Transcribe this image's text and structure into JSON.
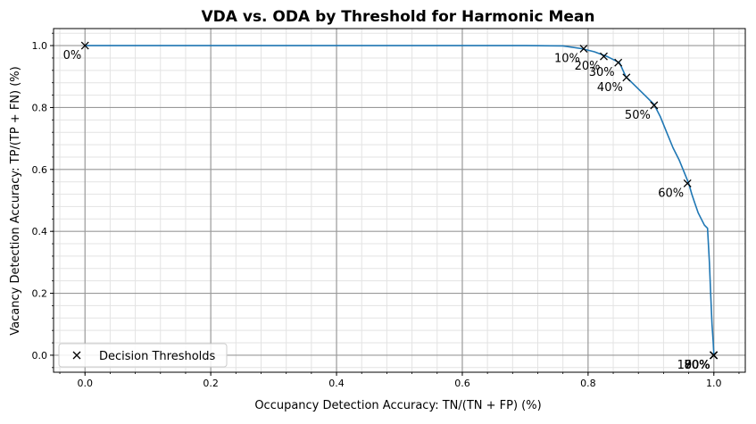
{
  "chart_data": {
    "type": "line",
    "title": "VDA vs. ODA by Threshold for Harmonic Mean",
    "xlabel": "Occupancy Detection Accuracy: TN/(TN + FP) (%)",
    "ylabel": "Vacancy Detection Accuracy: TP/(TP + FN) (%)",
    "xlim": [
      -0.05,
      1.05
    ],
    "ylim": [
      -0.055,
      1.055
    ],
    "x_ticks": [
      0.0,
      0.2,
      0.4,
      0.6,
      0.8,
      1.0
    ],
    "x_tick_labels": [
      "0.0",
      "0.2",
      "0.4",
      "0.6",
      "0.8",
      "1.0"
    ],
    "y_ticks": [
      0.0,
      0.2,
      0.4,
      0.6,
      0.8,
      1.0
    ],
    "y_tick_labels": [
      "0.0",
      "0.2",
      "0.4",
      "0.6",
      "0.8",
      "1.0"
    ],
    "grid": true,
    "minor_grid": true,
    "line_color": "#1f77b4",
    "curve": {
      "x": [
        0.0,
        0.5,
        0.7,
        0.76,
        0.79,
        0.81,
        0.83,
        0.85,
        0.86,
        0.875,
        0.89,
        0.905,
        0.915,
        0.925,
        0.935,
        0.945,
        0.955,
        0.96,
        0.965,
        0.97,
        0.975,
        0.98,
        0.985,
        0.99,
        0.993,
        0.995,
        0.997,
        0.999,
        1.0
      ],
      "y": [
        1.0,
        1.0,
        1.0,
        0.999,
        0.99,
        0.98,
        0.965,
        0.945,
        0.9,
        0.87,
        0.84,
        0.81,
        0.77,
        0.72,
        0.67,
        0.63,
        0.58,
        0.555,
        0.52,
        0.49,
        0.46,
        0.44,
        0.42,
        0.41,
        0.3,
        0.2,
        0.1,
        0.04,
        0.0
      ]
    },
    "thresholds": [
      {
        "label": "0%",
        "x": 0.0,
        "y": 1.0
      },
      {
        "label": "10%",
        "x": 0.793,
        "y": 0.99
      },
      {
        "label": "20%",
        "x": 0.825,
        "y": 0.965
      },
      {
        "label": "30%",
        "x": 0.848,
        "y": 0.945
      },
      {
        "label": "40%",
        "x": 0.861,
        "y": 0.897
      },
      {
        "label": "50%",
        "x": 0.905,
        "y": 0.807
      },
      {
        "label": "60%",
        "x": 0.958,
        "y": 0.555
      },
      {
        "label": "70%",
        "x": 0.9995,
        "y": 0.0
      },
      {
        "label": "80%",
        "x": 0.9997,
        "y": 0.0
      },
      {
        "label": "90%",
        "x": 0.9998,
        "y": 0.0
      },
      {
        "label": "100%",
        "x": 1.0,
        "y": 0.0
      }
    ],
    "legend": {
      "label": "Decision Thresholds",
      "marker": "x",
      "location": "lower-left"
    }
  }
}
